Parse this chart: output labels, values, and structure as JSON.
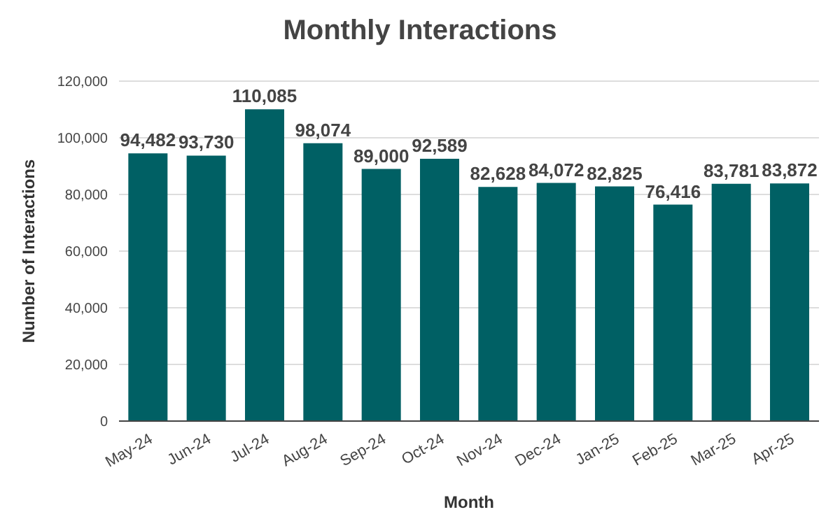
{
  "chart_data": {
    "type": "bar",
    "title": "Monthly Interactions",
    "xlabel": "Month",
    "ylabel": "Number of Interactions",
    "categories": [
      "May-24",
      "Jun-24",
      "Jul-24",
      "Aug-24",
      "Sep-24",
      "Oct-24",
      "Nov-24",
      "Dec-24",
      "Jan-25",
      "Feb-25",
      "Mar-25",
      "Apr-25"
    ],
    "values": [
      94482,
      93730,
      110085,
      98074,
      89000,
      92589,
      82628,
      84072,
      82825,
      76416,
      83781,
      83872
    ],
    "value_labels": [
      "94,482",
      "93,730",
      "110,085",
      "98,074",
      "89,000",
      "92,589",
      "82,628",
      "84,072",
      "82,825",
      "76,416",
      "83,781",
      "83,872"
    ],
    "color": "#006064",
    "ylim": [
      0,
      120000
    ],
    "yticks": [
      0,
      {
        "value": 20000,
        "label": "20,000"
      },
      {
        "value": 40000,
        "label": "40,000"
      },
      {
        "value": 60000,
        "label": "60,000"
      },
      {
        "value": 80000,
        "label": "80,000"
      },
      {
        "value": 100000,
        "label": "100,000"
      },
      {
        "value": 120000,
        "label": "120,000"
      }
    ],
    "grid": "y"
  }
}
